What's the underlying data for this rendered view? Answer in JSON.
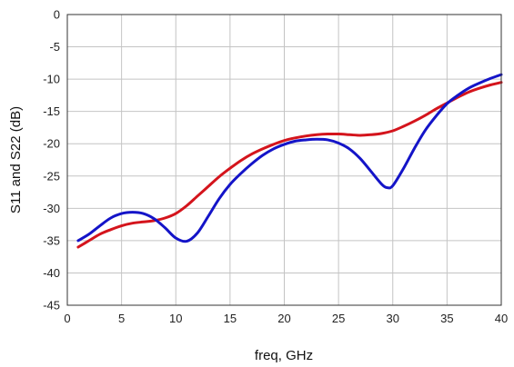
{
  "chart_data": {
    "type": "line",
    "title": "",
    "xlabel": "freq, GHz",
    "ylabel": "S11 and S22  (dB)",
    "xlim": [
      0,
      40
    ],
    "ylim": [
      -45,
      0
    ],
    "xticks": [
      0,
      5,
      10,
      15,
      20,
      25,
      30,
      35,
      40
    ],
    "yticks": [
      0,
      -5,
      -10,
      -15,
      -20,
      -25,
      -30,
      -35,
      -40,
      -45
    ],
    "grid": true,
    "legend": "none",
    "series": [
      {
        "color": "#d4141c",
        "x": [
          1,
          2,
          3,
          4,
          5,
          6,
          7,
          8,
          9,
          10,
          11,
          12,
          13,
          14,
          15,
          16,
          17,
          18,
          19,
          20,
          21,
          22,
          23,
          24,
          25,
          26,
          27,
          28,
          29,
          30,
          31,
          32,
          33,
          34,
          35,
          36,
          37,
          38,
          39,
          40
        ],
        "y": [
          -36.0,
          -35.0,
          -34.0,
          -33.3,
          -32.7,
          -32.3,
          -32.1,
          -31.9,
          -31.5,
          -30.8,
          -29.6,
          -28.1,
          -26.6,
          -25.1,
          -23.8,
          -22.6,
          -21.6,
          -20.8,
          -20.1,
          -19.5,
          -19.1,
          -18.8,
          -18.6,
          -18.5,
          -18.5,
          -18.6,
          -18.7,
          -18.6,
          -18.4,
          -18.0,
          -17.3,
          -16.5,
          -15.6,
          -14.6,
          -13.7,
          -12.8,
          -12.0,
          -11.4,
          -10.9,
          -10.5
        ]
      },
      {
        "color": "#1414c8",
        "x": [
          1,
          2,
          3,
          4,
          5,
          6,
          7,
          8,
          9,
          10,
          11,
          12,
          13,
          14,
          15,
          16,
          17,
          18,
          19,
          20,
          21,
          22,
          23,
          24,
          25,
          26,
          27,
          28,
          29,
          29.5,
          30,
          31,
          32,
          33,
          34,
          35,
          36,
          37,
          38,
          39,
          40
        ],
        "y": [
          -35.0,
          -34.0,
          -32.7,
          -31.5,
          -30.8,
          -30.6,
          -30.8,
          -31.6,
          -33.0,
          -34.6,
          -35.1,
          -33.8,
          -31.2,
          -28.5,
          -26.3,
          -24.6,
          -23.1,
          -21.8,
          -20.8,
          -20.1,
          -19.6,
          -19.4,
          -19.3,
          -19.4,
          -19.9,
          -20.8,
          -22.3,
          -24.3,
          -26.3,
          -26.8,
          -26.5,
          -23.8,
          -20.7,
          -17.9,
          -15.7,
          -13.8,
          -12.5,
          -11.4,
          -10.6,
          -9.9,
          -9.3
        ]
      }
    ]
  }
}
